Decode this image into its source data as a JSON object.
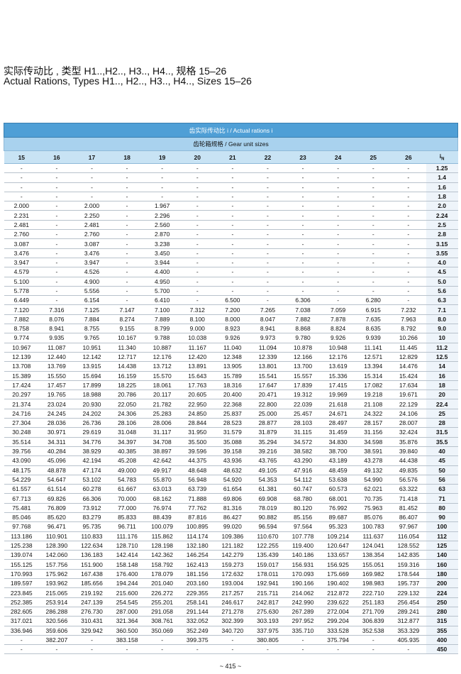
{
  "header": {
    "title_cn": "实际传动比 , 类型 H1..,H2.., H3.., H4.., 规格 15–26",
    "title_en": "Actual Rations, Types H1.., H2.., H3.., H4.., Sizes 15–26"
  },
  "table": {
    "caption": "齿实际传动比 i / Actual rations i",
    "subcaption": "齿轮箱规格 / Gear unit sizes",
    "columns": [
      "15",
      "16",
      "17",
      "18",
      "19",
      "20",
      "21",
      "22",
      "23",
      "24",
      "25",
      "26"
    ],
    "ratio_header": {
      "symbol": "i",
      "subscript": "N"
    },
    "rows": [
      [
        "-",
        "-",
        "-",
        "-",
        "-",
        "-",
        "-",
        "-",
        "-",
        "-",
        "-",
        "-",
        "1.25"
      ],
      [
        "-",
        "-",
        "-",
        "-",
        "-",
        "-",
        "-",
        "-",
        "-",
        "-",
        "-",
        "-",
        "1.4"
      ],
      [
        "-",
        "-",
        "-",
        "-",
        "-",
        "-",
        "-",
        "-",
        "-",
        "-",
        "-",
        "-",
        "1.6"
      ],
      [
        "-",
        "-",
        "-",
        "-",
        "-",
        "-",
        "-",
        "-",
        "-",
        "-",
        "-",
        "-",
        "1.8"
      ],
      [
        "2.000",
        "-",
        "2.000",
        "-",
        "1.967",
        "-",
        "-",
        "-",
        "-",
        "-",
        "-",
        "-",
        "2.0"
      ],
      [
        "2.231",
        "-",
        "2.250",
        "-",
        "2.296",
        "-",
        "-",
        "-",
        "-",
        "-",
        "-",
        "-",
        "2.24"
      ],
      [
        "2.481",
        "-",
        "2.481",
        "-",
        "2.560",
        "-",
        "-",
        "-",
        "-",
        "-",
        "-",
        "-",
        "2.5"
      ],
      [
        "2.760",
        "-",
        "2.760",
        "-",
        "2.870",
        "-",
        "-",
        "-",
        "-",
        "-",
        "-",
        "-",
        "2.8"
      ],
      [
        "3.087",
        "-",
        "3.087",
        "-",
        "3.238",
        "-",
        "-",
        "-",
        "-",
        "-",
        "-",
        "-",
        "3.15"
      ],
      [
        "3.476",
        "-",
        "3.476",
        "-",
        "3.450",
        "-",
        "-",
        "-",
        "-",
        "-",
        "-",
        "-",
        "3.55"
      ],
      [
        "3.947",
        "-",
        "3.947",
        "-",
        "3.944",
        "-",
        "-",
        "-",
        "-",
        "-",
        "-",
        "-",
        "4.0"
      ],
      [
        "4.579",
        "-",
        "4.526",
        "-",
        "4.400",
        "-",
        "-",
        "-",
        "-",
        "-",
        "-",
        "-",
        "4.5"
      ],
      [
        "5.100",
        "-",
        "4.900",
        "-",
        "4.950",
        "-",
        "-",
        "-",
        "-",
        "-",
        "-",
        "-",
        "5.0"
      ],
      [
        "5.778",
        "-",
        "5.556",
        "-",
        "5.700",
        "-",
        "-",
        "-",
        "-",
        "-",
        "-",
        "-",
        "5.6"
      ],
      [
        "6.449",
        "-",
        "6.154",
        "-",
        "6.410",
        "-",
        "6.500",
        "-",
        "6.306",
        "-",
        "6.280",
        "-",
        "6.3"
      ],
      [
        "7.120",
        "7.316",
        "7.125",
        "7.147",
        "7.100",
        "7.312",
        "7.200",
        "7.265",
        "7.038",
        "7.059",
        "6.915",
        "7.232",
        "7.1"
      ],
      [
        "7.882",
        "8.076",
        "7.884",
        "8.274",
        "7.889",
        "8.100",
        "8.000",
        "8.047",
        "7.882",
        "7.878",
        "7.635",
        "7.963",
        "8.0"
      ],
      [
        "8.758",
        "8.941",
        "8.755",
        "9.155",
        "8.799",
        "9.000",
        "8.923",
        "8.941",
        "8.868",
        "8.824",
        "8.635",
        "8.792",
        "9.0"
      ],
      [
        "9.774",
        "9.935",
        "9.765",
        "10.167",
        "9.788",
        "10.038",
        "9.926",
        "9.973",
        "9.780",
        "9.926",
        "9.939",
        "10.266",
        "10"
      ],
      [
        "10.967",
        "11.087",
        "10.951",
        "11.340",
        "10.887",
        "11.167",
        "11.040",
        "11.094",
        "10.878",
        "10.948",
        "11.141",
        "11.445",
        "11.2"
      ],
      [
        "12.139",
        "12.440",
        "12.142",
        "12.717",
        "12.176",
        "12.420",
        "12.348",
        "12.339",
        "12.166",
        "12.176",
        "12.571",
        "12.829",
        "12.5"
      ],
      [
        "13.708",
        "13.769",
        "13.915",
        "14.438",
        "13.712",
        "13.891",
        "13.905",
        "13.801",
        "13.700",
        "13.619",
        "13.394",
        "14.476",
        "14"
      ],
      [
        "15.389",
        "15.550",
        "15.694",
        "16.159",
        "15.570",
        "15.643",
        "15.789",
        "15.541",
        "15.557",
        "15.336",
        "15.314",
        "15.424",
        "16"
      ],
      [
        "17.424",
        "17.457",
        "17.899",
        "18.225",
        "18.061",
        "17.763",
        "18.316",
        "17.647",
        "17.839",
        "17.415",
        "17.082",
        "17.634",
        "18"
      ],
      [
        "20.297",
        "19.765",
        "18.988",
        "20.786",
        "20.117",
        "20.605",
        "20.400",
        "20.471",
        "19.312",
        "19.969",
        "19.218",
        "19.671",
        "20"
      ],
      [
        "21.374",
        "23.024",
        "20.930",
        "22.050",
        "21.782",
        "22.950",
        "22.368",
        "22.800",
        "22.039",
        "21.618",
        "21.108",
        "22.129",
        "22.4"
      ],
      [
        "24.716",
        "24.245",
        "24.202",
        "24.306",
        "25.283",
        "24.850",
        "25.837",
        "25.000",
        "25.457",
        "24.671",
        "24.322",
        "24.106",
        "25"
      ],
      [
        "27.304",
        "28.036",
        "26.736",
        "28.106",
        "28.006",
        "28.844",
        "28.523",
        "28.877",
        "28.103",
        "28.497",
        "28.157",
        "28.007",
        "28"
      ],
      [
        "30.248",
        "30.971",
        "29.619",
        "31.048",
        "31.117",
        "31.950",
        "31.579",
        "31.879",
        "31.115",
        "31.459",
        "31.156",
        "32.424",
        "31.5"
      ],
      [
        "35.514",
        "34.311",
        "34.776",
        "34.397",
        "34.708",
        "35.500",
        "35.088",
        "35.294",
        "34.572",
        "34.830",
        "34.598",
        "35.876",
        "35.5"
      ],
      [
        "39.756",
        "40.284",
        "38.929",
        "40.385",
        "38.897",
        "39.596",
        "39.158",
        "39.216",
        "38.582",
        "38.700",
        "38.591",
        "39.840",
        "40"
      ],
      [
        "43.090",
        "45.096",
        "42.194",
        "45.208",
        "42.642",
        "44.375",
        "43.936",
        "43.765",
        "43.290",
        "43.189",
        "43.278",
        "44.438",
        "45"
      ],
      [
        "48.175",
        "48.878",
        "47.174",
        "49.000",
        "49.917",
        "48.648",
        "48.632",
        "49.105",
        "47.916",
        "48.459",
        "49.132",
        "49.835",
        "50"
      ],
      [
        "54.229",
        "54.647",
        "53.102",
        "54.783",
        "55.870",
        "56.948",
        "54.920",
        "54.353",
        "54.112",
        "53.638",
        "54.990",
        "56.576",
        "56"
      ],
      [
        "61.557",
        "61.514",
        "60.278",
        "61.667",
        "63.013",
        "63.739",
        "61.654",
        "61.381",
        "60.747",
        "60.573",
        "62.021",
        "63.322",
        "63"
      ],
      [
        "67.713",
        "69.826",
        "66.306",
        "70.000",
        "68.162",
        "71.888",
        "69.806",
        "69.908",
        "68.780",
        "68.001",
        "70.735",
        "71.418",
        "71"
      ],
      [
        "75.481",
        "76.809",
        "73.912",
        "77.000",
        "76.974",
        "77.762",
        "81.316",
        "78.019",
        "80.120",
        "76.992",
        "75.963",
        "81.452",
        "80"
      ],
      [
        "85.046",
        "85.620",
        "83.279",
        "85.833",
        "88.439",
        "87.816",
        "86.427",
        "90.882",
        "85.156",
        "89.687",
        "85.076",
        "86.407",
        "90"
      ],
      [
        "97.768",
        "96.471",
        "95.735",
        "96.711",
        "100.079",
        "100.895",
        "99.020",
        "96.594",
        "97.564",
        "95.323",
        "100.783",
        "97.967",
        "100"
      ],
      [
        "113.186",
        "110.901",
        "110.833",
        "111.176",
        "115.862",
        "114.174",
        "109.386",
        "110.670",
        "107.778",
        "109.214",
        "111.637",
        "116.054",
        "112"
      ],
      [
        "125.238",
        "128.390",
        "122.634",
        "128.710",
        "128.198",
        "132.180",
        "121.182",
        "122.255",
        "119.400",
        "120.647",
        "124.041",
        "128.552",
        "125"
      ],
      [
        "139.074",
        "142.060",
        "136.183",
        "142.414",
        "142.362",
        "146.254",
        "142.279",
        "135.439",
        "140.186",
        "133.657",
        "138.354",
        "142.835",
        "140"
      ],
      [
        "155.125",
        "157.756",
        "151.900",
        "158.148",
        "158.792",
        "162.413",
        "159.273",
        "159.017",
        "156.931",
        "156.925",
        "155.051",
        "159.316",
        "160"
      ],
      [
        "170.993",
        "175.962",
        "167.438",
        "176.400",
        "178.079",
        "181.156",
        "172.632",
        "178.011",
        "170.093",
        "175.669",
        "169.982",
        "178.544",
        "180"
      ],
      [
        "189.597",
        "193.962",
        "185.656",
        "194.244",
        "201.040",
        "203.160",
        "193.004",
        "192.941",
        "190.166",
        "190.402",
        "198.983",
        "195.737",
        "200"
      ],
      [
        "223.845",
        "215.065",
        "219.192",
        "215.600",
        "226.272",
        "229.355",
        "217.257",
        "215.711",
        "214.062",
        "212.872",
        "222.710",
        "229.132",
        "224"
      ],
      [
        "252.385",
        "253.914",
        "247.139",
        "254.545",
        "255.201",
        "258.141",
        "246.617",
        "242.817",
        "242.990",
        "239.622",
        "251.183",
        "256.454",
        "250"
      ],
      [
        "282.605",
        "286.288",
        "276.730",
        "287.000",
        "291.058",
        "291.144",
        "271.278",
        "275.630",
        "267.289",
        "272.004",
        "271.709",
        "289.241",
        "280"
      ],
      [
        "317.021",
        "320.566",
        "310.431",
        "321.364",
        "308.761",
        "332.052",
        "302.399",
        "303.193",
        "297.952",
        "299.204",
        "306.839",
        "312.877",
        "315"
      ],
      [
        "336.946",
        "359.606",
        "329.942",
        "360.500",
        "350.069",
        "352.249",
        "340.720",
        "337.975",
        "335.710",
        "333.528",
        "352.538",
        "353.329",
        "355"
      ],
      [
        "-",
        "382.207",
        "-",
        "383.158",
        "-",
        "399.375",
        "-",
        "380.805",
        "-",
        "375.794",
        "-",
        "405.935",
        "400"
      ],
      [
        "-",
        "-",
        "-",
        "-",
        "-",
        "-",
        "-",
        "-",
        "-",
        "-",
        "-",
        "-",
        "450"
      ]
    ]
  },
  "footer": {
    "page": "~ 415 ~"
  }
}
